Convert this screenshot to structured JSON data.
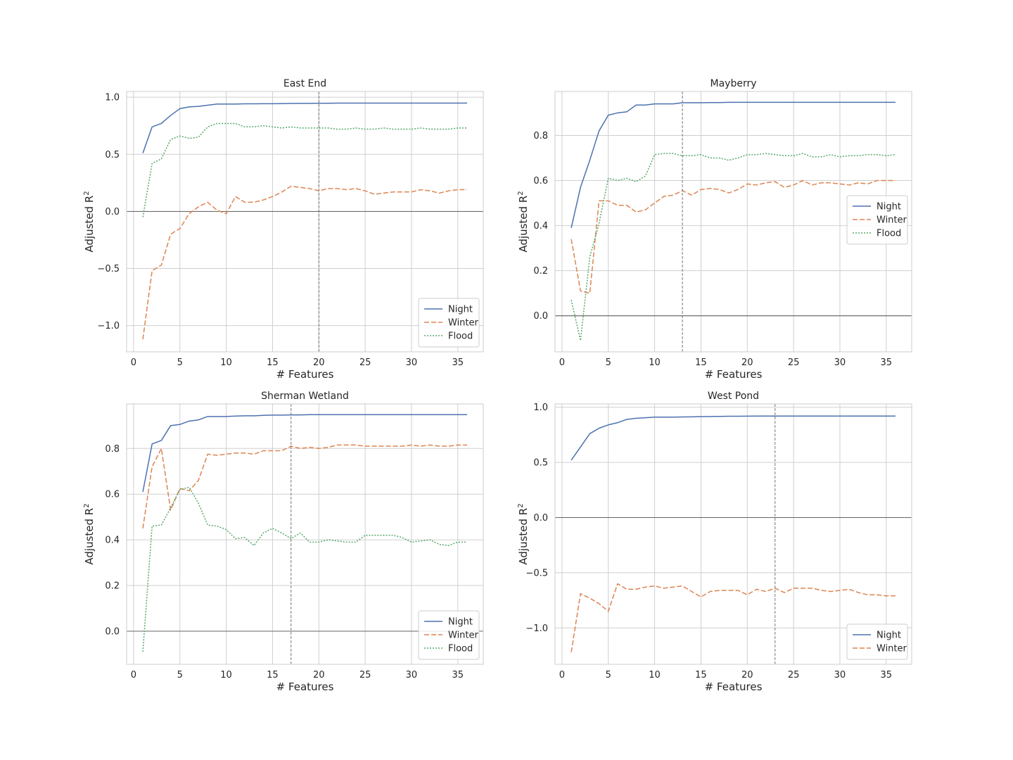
{
  "chart_data": [
    {
      "type": "line",
      "title": "East End",
      "xlabel": "# Features",
      "ylabel": "Adjusted R",
      "ylabel_superscript": "2",
      "xlim": [
        -0.75,
        37.75
      ],
      "ylim": [
        -1.23,
        1.05
      ],
      "xticks": [
        0,
        5,
        10,
        15,
        20,
        25,
        30,
        35
      ],
      "yticks": [
        -1.0,
        -0.5,
        0.0,
        0.5,
        1.0
      ],
      "ytick_labels": [
        "−1.0",
        "−0.5",
        "0.0",
        "0.5",
        "1.0"
      ],
      "hline": 0,
      "vline": 20,
      "legend": "lower-right",
      "series": [
        {
          "name": "Night",
          "color": "#4c72b0",
          "dash": "solid",
          "values": [
            0.51,
            0.74,
            0.77,
            0.84,
            0.9,
            0.915,
            0.92,
            0.93,
            0.94,
            0.94,
            0.94,
            0.942,
            0.942,
            0.943,
            0.943,
            0.944,
            0.945,
            0.946,
            0.946,
            0.947,
            0.947,
            0.948,
            0.948,
            0.948,
            0.948,
            0.948,
            0.948,
            0.948,
            0.948,
            0.948,
            0.948,
            0.948,
            0.948,
            0.948,
            0.948,
            0.948
          ]
        },
        {
          "name": "Winter",
          "color": "#dd8452",
          "dash": "dashed",
          "values": [
            -1.12,
            -0.52,
            -0.47,
            -0.2,
            -0.15,
            -0.02,
            0.04,
            0.08,
            0.01,
            -0.02,
            0.13,
            0.08,
            0.08,
            0.1,
            0.13,
            0.17,
            0.22,
            0.21,
            0.2,
            0.18,
            0.2,
            0.2,
            0.19,
            0.2,
            0.18,
            0.15,
            0.16,
            0.17,
            0.17,
            0.17,
            0.19,
            0.18,
            0.16,
            0.18,
            0.19,
            0.19
          ]
        },
        {
          "name": "Flood",
          "color": "#55a868",
          "dash": "dotted",
          "values": [
            -0.05,
            0.42,
            0.46,
            0.63,
            0.66,
            0.64,
            0.65,
            0.74,
            0.77,
            0.77,
            0.77,
            0.74,
            0.74,
            0.75,
            0.74,
            0.73,
            0.74,
            0.73,
            0.73,
            0.73,
            0.73,
            0.72,
            0.72,
            0.73,
            0.72,
            0.72,
            0.73,
            0.72,
            0.72,
            0.72,
            0.73,
            0.72,
            0.72,
            0.72,
            0.73,
            0.73
          ]
        }
      ]
    },
    {
      "type": "line",
      "title": "Mayberry",
      "xlabel": "# Features",
      "ylabel": "Adjusted R",
      "ylabel_superscript": "2",
      "xlim": [
        -0.75,
        37.75
      ],
      "ylim": [
        -0.16,
        0.995
      ],
      "xticks": [
        0,
        5,
        10,
        15,
        20,
        25,
        30,
        35
      ],
      "yticks": [
        0.0,
        0.2,
        0.4,
        0.6,
        0.8
      ],
      "ytick_labels": [
        "0.0",
        "0.2",
        "0.4",
        "0.6",
        "0.8"
      ],
      "hline": 0,
      "vline": 13,
      "legend": "center-right",
      "series": [
        {
          "name": "Night",
          "color": "#4c72b0",
          "dash": "solid",
          "values": [
            0.39,
            0.57,
            0.69,
            0.82,
            0.89,
            0.9,
            0.905,
            0.935,
            0.935,
            0.94,
            0.94,
            0.94,
            0.945,
            0.945,
            0.945,
            0.946,
            0.946,
            0.947,
            0.947,
            0.947,
            0.947,
            0.947,
            0.947,
            0.947,
            0.947,
            0.947,
            0.947,
            0.947,
            0.947,
            0.947,
            0.947,
            0.947,
            0.947,
            0.947,
            0.947,
            0.947
          ]
        },
        {
          "name": "Winter",
          "color": "#dd8452",
          "dash": "dashed",
          "values": [
            0.34,
            0.11,
            0.1,
            0.51,
            0.51,
            0.49,
            0.49,
            0.46,
            0.47,
            0.5,
            0.53,
            0.535,
            0.555,
            0.535,
            0.56,
            0.565,
            0.56,
            0.545,
            0.56,
            0.585,
            0.58,
            0.59,
            0.595,
            0.57,
            0.58,
            0.6,
            0.58,
            0.59,
            0.59,
            0.585,
            0.58,
            0.59,
            0.585,
            0.6,
            0.6,
            0.6
          ]
        },
        {
          "name": "Flood",
          "color": "#55a868",
          "dash": "dotted",
          "values": [
            0.07,
            -0.11,
            0.26,
            0.41,
            0.61,
            0.6,
            0.61,
            0.595,
            0.62,
            0.715,
            0.72,
            0.72,
            0.71,
            0.71,
            0.715,
            0.7,
            0.7,
            0.69,
            0.7,
            0.715,
            0.715,
            0.72,
            0.715,
            0.71,
            0.71,
            0.72,
            0.705,
            0.705,
            0.715,
            0.705,
            0.71,
            0.71,
            0.715,
            0.715,
            0.71,
            0.715
          ]
        }
      ]
    },
    {
      "type": "line",
      "title": "Sherman Wetland",
      "xlabel": "# Features",
      "ylabel": "Adjusted R",
      "ylabel_superscript": "2",
      "xlim": [
        -0.75,
        37.75
      ],
      "ylim": [
        -0.145,
        0.995
      ],
      "xticks": [
        0,
        5,
        10,
        15,
        20,
        25,
        30,
        35
      ],
      "yticks": [
        0.0,
        0.2,
        0.4,
        0.6,
        0.8
      ],
      "ytick_labels": [
        "0.0",
        "0.2",
        "0.4",
        "0.6",
        "0.8"
      ],
      "hline": 0,
      "vline": 17,
      "legend": "lower-right",
      "series": [
        {
          "name": "Night",
          "color": "#4c72b0",
          "dash": "solid",
          "values": [
            0.61,
            0.82,
            0.835,
            0.9,
            0.905,
            0.92,
            0.925,
            0.94,
            0.94,
            0.94,
            0.942,
            0.943,
            0.943,
            0.945,
            0.946,
            0.946,
            0.947,
            0.947,
            0.948,
            0.948,
            0.948,
            0.948,
            0.948,
            0.948,
            0.948,
            0.948,
            0.948,
            0.948,
            0.948,
            0.948,
            0.948,
            0.948,
            0.948,
            0.948,
            0.948,
            0.948
          ]
        },
        {
          "name": "Winter",
          "color": "#dd8452",
          "dash": "dashed",
          "values": [
            0.45,
            0.72,
            0.8,
            0.53,
            0.625,
            0.615,
            0.66,
            0.775,
            0.77,
            0.775,
            0.78,
            0.78,
            0.775,
            0.79,
            0.79,
            0.79,
            0.81,
            0.8,
            0.805,
            0.8,
            0.805,
            0.815,
            0.815,
            0.815,
            0.81,
            0.81,
            0.81,
            0.81,
            0.81,
            0.815,
            0.81,
            0.815,
            0.81,
            0.81,
            0.815,
            0.815
          ]
        },
        {
          "name": "Flood",
          "color": "#55a868",
          "dash": "dotted",
          "values": [
            -0.09,
            0.46,
            0.465,
            0.54,
            0.62,
            0.63,
            0.56,
            0.465,
            0.46,
            0.445,
            0.405,
            0.41,
            0.375,
            0.43,
            0.45,
            0.43,
            0.405,
            0.43,
            0.39,
            0.39,
            0.4,
            0.395,
            0.39,
            0.39,
            0.42,
            0.42,
            0.42,
            0.42,
            0.41,
            0.39,
            0.395,
            0.4,
            0.38,
            0.375,
            0.39,
            0.39
          ]
        }
      ]
    },
    {
      "type": "line",
      "title": "West Pond",
      "xlabel": "# Features",
      "ylabel": "Adjusted R",
      "ylabel_superscript": "2",
      "xlim": [
        -0.75,
        37.75
      ],
      "ylim": [
        -1.33,
        1.03
      ],
      "xticks": [
        0,
        5,
        10,
        15,
        20,
        25,
        30,
        35
      ],
      "yticks": [
        -1.0,
        -0.5,
        0.0,
        0.5,
        1.0
      ],
      "ytick_labels": [
        "−1.0",
        "−0.5",
        "0.0",
        "0.5",
        "1.0"
      ],
      "hline": 0,
      "vline": 23,
      "legend": "lower-right",
      "series": [
        {
          "name": "Night",
          "color": "#4c72b0",
          "dash": "solid",
          "values": [
            0.52,
            0.64,
            0.76,
            0.81,
            0.84,
            0.86,
            0.89,
            0.9,
            0.905,
            0.91,
            0.91,
            0.91,
            0.912,
            0.913,
            0.915,
            0.916,
            0.917,
            0.918,
            0.918,
            0.919,
            0.92,
            0.92,
            0.92,
            0.92,
            0.92,
            0.92,
            0.92,
            0.92,
            0.92,
            0.92,
            0.92,
            0.92,
            0.92,
            0.92,
            0.92,
            0.92
          ]
        },
        {
          "name": "Winter",
          "color": "#dd8452",
          "dash": "dashed",
          "values": [
            -1.22,
            -0.69,
            -0.73,
            -0.78,
            -0.85,
            -0.6,
            -0.65,
            -0.65,
            -0.63,
            -0.62,
            -0.64,
            -0.63,
            -0.62,
            -0.67,
            -0.72,
            -0.67,
            -0.66,
            -0.66,
            -0.66,
            -0.7,
            -0.65,
            -0.67,
            -0.64,
            -0.68,
            -0.64,
            -0.64,
            -0.64,
            -0.66,
            -0.67,
            -0.66,
            -0.65,
            -0.68,
            -0.7,
            -0.7,
            -0.71,
            -0.71
          ]
        }
      ]
    }
  ]
}
